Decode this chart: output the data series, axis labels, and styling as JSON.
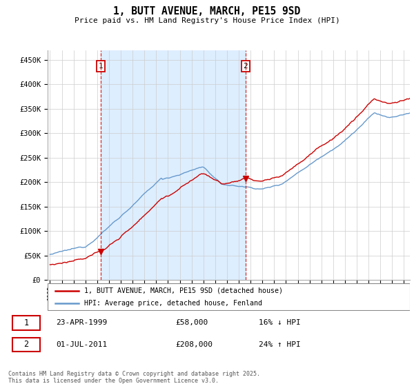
{
  "title": "1, BUTT AVENUE, MARCH, PE15 9SD",
  "subtitle": "Price paid vs. HM Land Registry's House Price Index (HPI)",
  "ylim": [
    0,
    470000
  ],
  "yticks": [
    0,
    50000,
    100000,
    150000,
    200000,
    250000,
    300000,
    350000,
    400000,
    450000
  ],
  "legend_label_red": "1, BUTT AVENUE, MARCH, PE15 9SD (detached house)",
  "legend_label_blue": "HPI: Average price, detached house, Fenland",
  "annotation1_date": "23-APR-1999",
  "annotation1_price": "£58,000",
  "annotation1_hpi": "16% ↓ HPI",
  "annotation2_date": "01-JUL-2011",
  "annotation2_price": "£208,000",
  "annotation2_hpi": "24% ↑ HPI",
  "footer": "Contains HM Land Registry data © Crown copyright and database right 2025.\nThis data is licensed under the Open Government Licence v3.0.",
  "red_color": "#cc0000",
  "blue_color": "#6699cc",
  "shade_color": "#ddeeff",
  "sale1_year": 1999.32,
  "sale2_year": 2011.58,
  "sale1_price": 58000,
  "sale2_price": 208000,
  "xmin": 1994.8,
  "xmax": 2025.5
}
